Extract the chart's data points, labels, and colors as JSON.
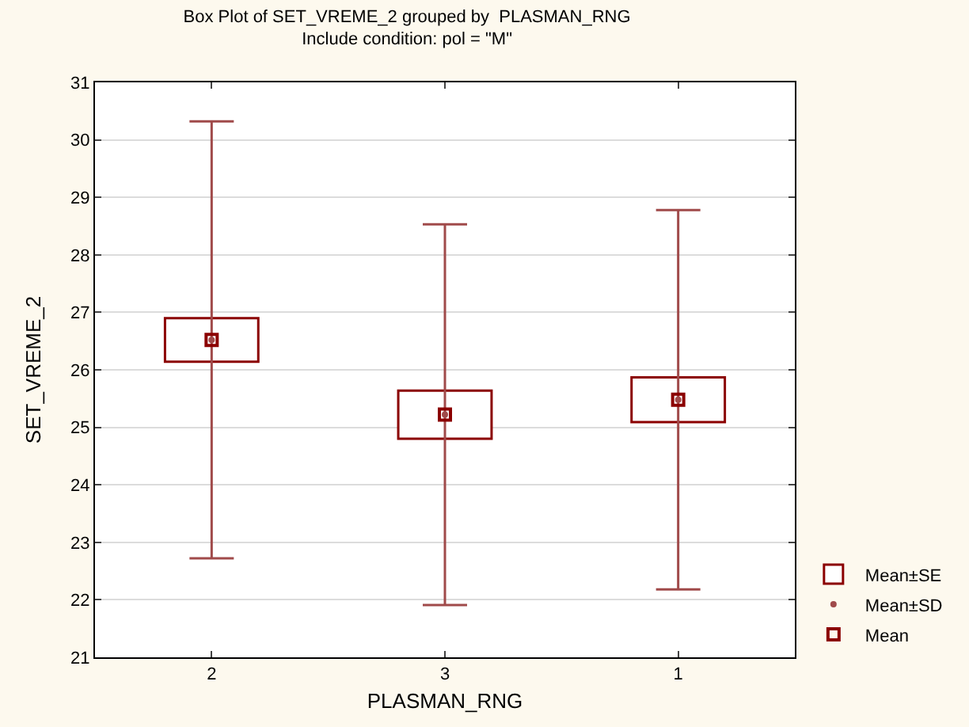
{
  "chart_data": {
    "type": "scatter",
    "title": "Box Plot of SET_VREME_2 grouped by  PLASMAN_RNG",
    "subtitle": "Include condition: pol = \"M\"",
    "xlabel": "PLASMAN_RNG",
    "ylabel": "SET_VREME_2",
    "categories": [
      "2",
      "3",
      "1"
    ],
    "series": [
      {
        "name": "Mean±SE",
        "type": "bar",
        "color": "#8b0000",
        "base": [
          26.14,
          24.8,
          25.09
        ],
        "values": [
          0.76,
          0.84,
          0.78
        ]
      },
      {
        "name": "Mean±SD",
        "type": "scatter",
        "marker": "circle",
        "color": "#a04a4a",
        "values": [
          26.52,
          25.22,
          25.48
        ],
        "errors": [
          3.8,
          3.31,
          3.3
        ]
      },
      {
        "name": "Mean",
        "marker": "square",
        "color": "#8b0000",
        "values": [
          26.52,
          25.22,
          25.48
        ]
      }
    ],
    "ylim": [
      21,
      31
    ],
    "yticks": [
      21,
      22,
      23,
      24,
      25,
      26,
      27,
      28,
      29,
      30,
      31
    ],
    "grid": "y",
    "legend": "bottom right"
  }
}
